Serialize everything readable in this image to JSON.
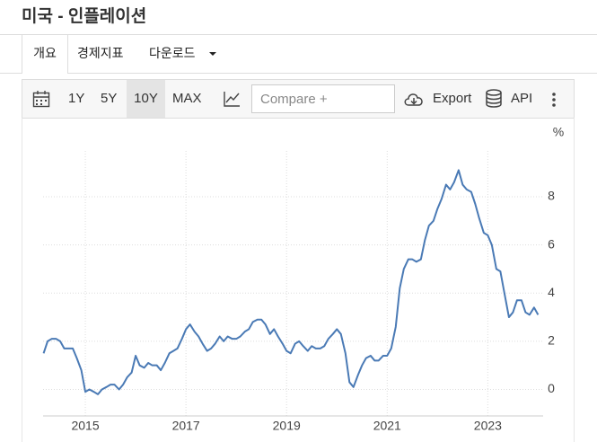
{
  "page": {
    "title": "미국 - 인플레이션",
    "tabs": [
      "개요",
      "경제지표",
      "다운로드"
    ],
    "toolbar": {
      "ranges": [
        "1Y",
        "5Y",
        "10Y",
        "MAX"
      ],
      "compare": "Compare +",
      "export": "Export",
      "api": "API"
    }
  },
  "chart_data": {
    "type": "line",
    "y_unit": "%",
    "x": [
      2014.17,
      2014.25,
      2014.33,
      2014.42,
      2014.5,
      2014.58,
      2014.67,
      2014.75,
      2014.83,
      2014.92,
      2015.0,
      2015.08,
      2015.17,
      2015.25,
      2015.33,
      2015.42,
      2015.5,
      2015.58,
      2015.67,
      2015.75,
      2015.83,
      2015.92,
      2016.0,
      2016.08,
      2016.17,
      2016.25,
      2016.33,
      2016.42,
      2016.5,
      2016.58,
      2016.67,
      2016.75,
      2016.83,
      2016.92,
      2017.0,
      2017.08,
      2017.17,
      2017.25,
      2017.33,
      2017.42,
      2017.5,
      2017.58,
      2017.67,
      2017.75,
      2017.83,
      2017.92,
      2018.0,
      2018.08,
      2018.17,
      2018.25,
      2018.33,
      2018.42,
      2018.5,
      2018.58,
      2018.67,
      2018.75,
      2018.83,
      2018.92,
      2019.0,
      2019.08,
      2019.17,
      2019.25,
      2019.33,
      2019.42,
      2019.5,
      2019.58,
      2019.67,
      2019.75,
      2019.83,
      2019.92,
      2020.0,
      2020.08,
      2020.17,
      2020.25,
      2020.33,
      2020.42,
      2020.5,
      2020.58,
      2020.67,
      2020.75,
      2020.83,
      2020.92,
      2021.0,
      2021.08,
      2021.17,
      2021.25,
      2021.33,
      2021.42,
      2021.5,
      2021.58,
      2021.67,
      2021.75,
      2021.83,
      2021.92,
      2022.0,
      2022.08,
      2022.17,
      2022.25,
      2022.33,
      2022.42,
      2022.5,
      2022.58,
      2022.67,
      2022.75,
      2022.83,
      2022.92,
      2023.0,
      2023.08,
      2023.17,
      2023.25,
      2023.33,
      2023.42,
      2023.5,
      2023.58,
      2023.67,
      2023.75,
      2023.83,
      2023.92,
      2024.0
    ],
    "series": [
      {
        "color": "#4a7ab5",
        "values": [
          1.5,
          2.0,
          2.1,
          2.1,
          2.0,
          1.7,
          1.7,
          1.7,
          1.3,
          0.8,
          -0.1,
          0.0,
          -0.1,
          -0.2,
          0.0,
          0.1,
          0.2,
          0.2,
          0.0,
          0.2,
          0.5,
          0.7,
          1.4,
          1.0,
          0.9,
          1.1,
          1.0,
          1.0,
          0.8,
          1.1,
          1.5,
          1.6,
          1.7,
          2.1,
          2.5,
          2.7,
          2.4,
          2.2,
          1.9,
          1.6,
          1.7,
          1.9,
          2.2,
          2.0,
          2.2,
          2.1,
          2.1,
          2.2,
          2.4,
          2.5,
          2.8,
          2.9,
          2.9,
          2.7,
          2.3,
          2.5,
          2.2,
          1.9,
          1.6,
          1.5,
          1.9,
          2.0,
          1.8,
          1.6,
          1.8,
          1.7,
          1.7,
          1.8,
          2.1,
          2.3,
          2.5,
          2.3,
          1.5,
          0.3,
          0.1,
          0.6,
          1.0,
          1.3,
          1.4,
          1.2,
          1.2,
          1.4,
          1.4,
          1.7,
          2.6,
          4.2,
          5.0,
          5.4,
          5.4,
          5.3,
          5.4,
          6.2,
          6.8,
          7.0,
          7.5,
          7.9,
          8.5,
          8.3,
          8.6,
          9.1,
          8.5,
          8.3,
          8.2,
          7.7,
          7.1,
          6.5,
          6.4,
          6.0,
          5.0,
          4.9,
          4.0,
          3.0,
          3.2,
          3.7,
          3.7,
          3.2,
          3.1,
          3.4,
          3.1
        ]
      }
    ],
    "xlim": [
      2014.16,
      2024.1
    ],
    "xticks": [
      2015,
      2017,
      2019,
      2021,
      2023
    ],
    "ylim": [
      -1.1,
      9.9
    ],
    "yticks": [
      0,
      2,
      4,
      6,
      8
    ],
    "grid": true
  }
}
